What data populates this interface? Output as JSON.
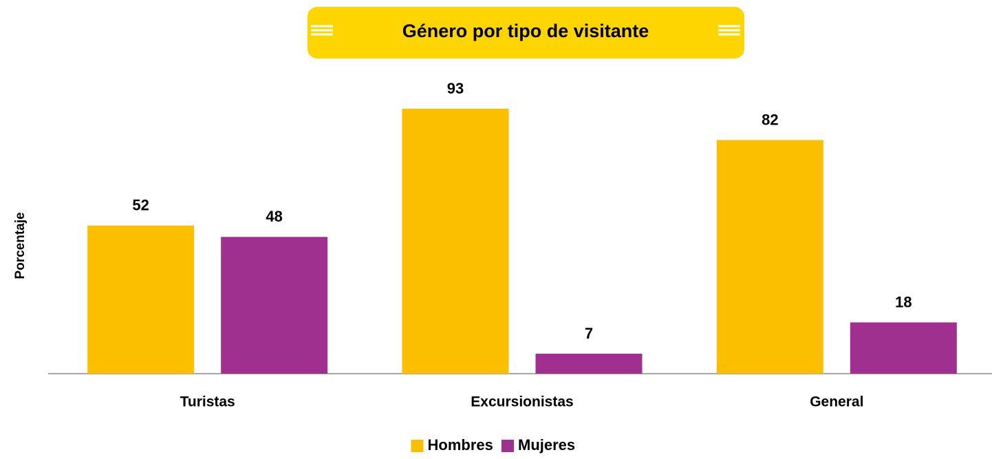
{
  "chart_data": {
    "type": "bar",
    "title": "Género por tipo de visitante",
    "y_label": "Porcentaje",
    "categories": [
      "Turistas",
      "Excursionistas",
      "General"
    ],
    "series": [
      {
        "name": "Hombres",
        "color": "#fbbf00",
        "values": [
          52,
          93,
          82
        ]
      },
      {
        "name": "Mujeres",
        "color": "#a0308f",
        "values": [
          48,
          7,
          18
        ]
      }
    ],
    "ylim": [
      0,
      100
    ],
    "legend": "bottom"
  }
}
